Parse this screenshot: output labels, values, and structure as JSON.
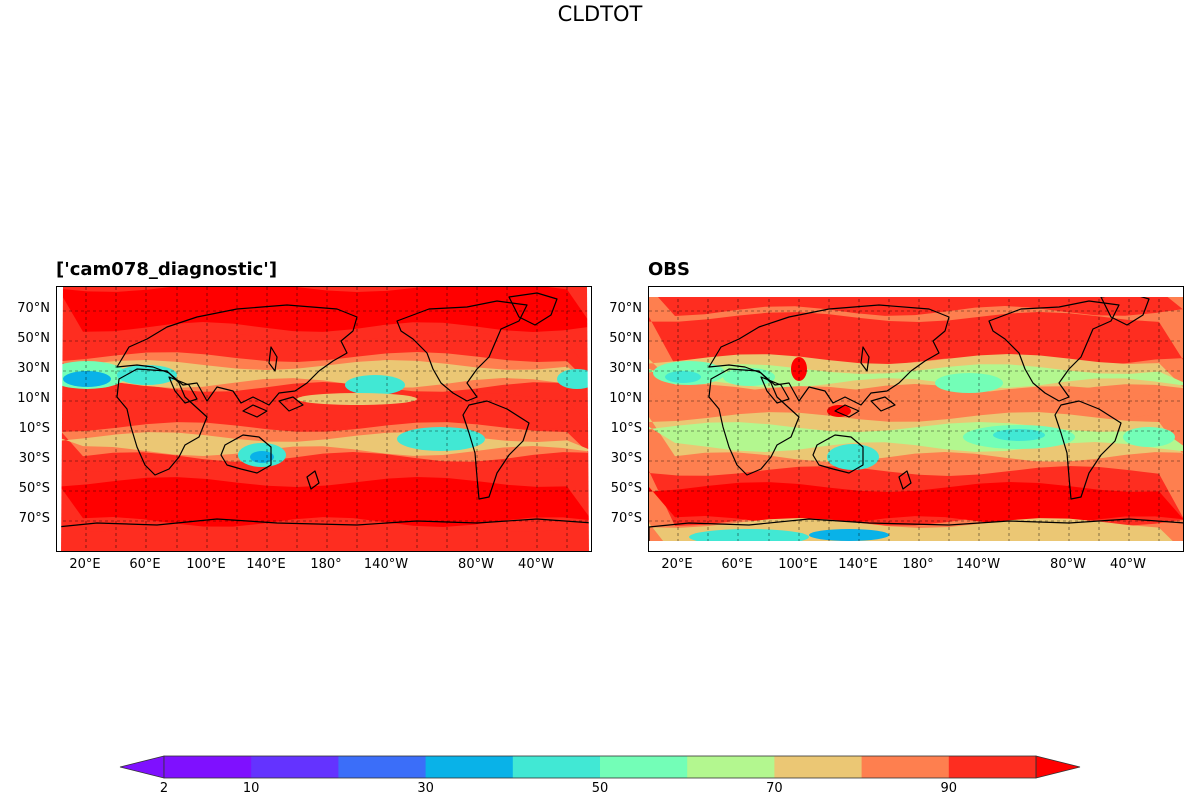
{
  "figure": {
    "title": "CLDTOT"
  },
  "panels": [
    {
      "id": "model",
      "title": "['cam078_diagnostic']"
    },
    {
      "id": "obs",
      "title": "OBS"
    }
  ],
  "axes": {
    "lat_ticks": [
      "70°N",
      "50°N",
      "30°N",
      "10°N",
      "10°S",
      "30°S",
      "50°S",
      "70°S"
    ],
    "lon_ticks": [
      "20°E",
      "60°E",
      "100°E",
      "140°E",
      "180°",
      "140°W",
      "80°W",
      "40°W"
    ]
  },
  "colorbar": {
    "colors": [
      "#7f10ff",
      "#6433ff",
      "#3b6ef9",
      "#09b2e8",
      "#41e8d4",
      "#73feb7",
      "#b3f78f",
      "#ebc774",
      "#fe7f4f",
      "#fe2d20"
    ],
    "under_color": "#7f10ff",
    "over_color": "#ff0000",
    "levels": [
      2,
      10,
      20,
      30,
      40,
      50,
      60,
      70,
      80,
      90
    ],
    "tick_labels": [
      "2",
      "10",
      "30",
      "50",
      "70",
      "90"
    ]
  },
  "map_colors": {
    "red": "#fe2d20",
    "deep_red": "#ff0000",
    "orange": "#fe7f4f",
    "tan": "#ebc774",
    "lime": "#b3f78f",
    "mint": "#73feb7",
    "aqua": "#41e8d4",
    "cyan": "#09b2e8",
    "blue": "#3b6ef9"
  }
}
